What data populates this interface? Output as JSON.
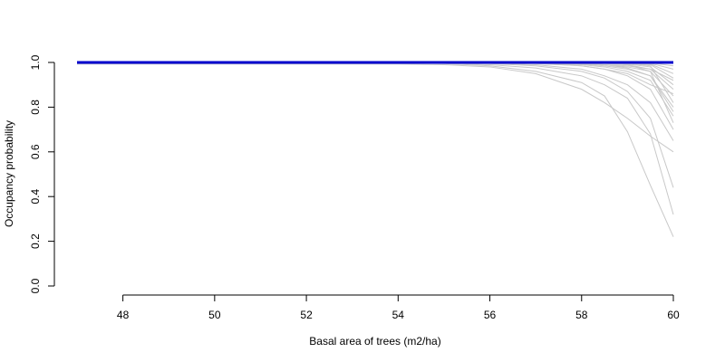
{
  "chart_data": {
    "type": "line",
    "title": "",
    "xlabel": "Basal area of trees (m2/ha)",
    "ylabel": "Occupancy probability",
    "xlim": [
      47,
      60
    ],
    "ylim": [
      0,
      1
    ],
    "x_ticks": [
      48,
      50,
      52,
      54,
      56,
      58,
      60
    ],
    "y_ticks": [
      0.0,
      0.2,
      0.4,
      0.6,
      0.8,
      1.0
    ],
    "x_tick_labels": [
      "48",
      "50",
      "52",
      "54",
      "56",
      "58",
      "60"
    ],
    "y_tick_labels": [
      "0.0",
      "0.2",
      "0.4",
      "0.6",
      "0.8",
      "1.0"
    ],
    "grid": false,
    "legend": "none",
    "x": [
      47,
      48,
      49,
      50,
      51,
      52,
      53,
      54,
      55,
      56,
      57,
      58,
      58.5,
      59,
      59.5,
      60
    ],
    "mean_series": {
      "color": "#0000cd",
      "values": [
        1.0,
        1.0,
        1.0,
        1.0,
        1.0,
        1.0,
        1.0,
        1.0,
        1.0,
        1.0,
        1.0,
        1.0,
        1.0,
        1.0,
        1.0,
        1.0
      ]
    },
    "sample_color": "#c8c8c8",
    "series": [
      {
        "values": [
          1.0,
          1.0,
          1.0,
          1.0,
          1.0,
          1.0,
          1.0,
          0.999,
          0.995,
          0.985,
          0.96,
          0.91,
          0.85,
          0.69,
          0.45,
          0.22
        ]
      },
      {
        "values": [
          1.0,
          1.0,
          1.0,
          1.0,
          1.0,
          1.0,
          1.0,
          1.0,
          0.998,
          0.99,
          0.975,
          0.94,
          0.9,
          0.84,
          0.68,
          0.32
        ]
      },
      {
        "values": [
          1.0,
          1.0,
          1.0,
          1.0,
          1.0,
          1.0,
          1.0,
          1.0,
          0.999,
          0.995,
          0.985,
          0.96,
          0.93,
          0.87,
          0.75,
          0.44
        ]
      },
      {
        "values": [
          0.993,
          0.993,
          0.993,
          0.993,
          0.993,
          0.993,
          0.993,
          0.993,
          0.99,
          0.98,
          0.95,
          0.88,
          0.82,
          0.75,
          0.67,
          0.6
        ]
      },
      {
        "values": [
          1.0,
          1.0,
          1.0,
          1.0,
          1.0,
          1.0,
          1.0,
          1.0,
          1.0,
          0.998,
          0.99,
          0.97,
          0.94,
          0.9,
          0.82,
          0.65
        ]
      },
      {
        "values": [
          1.0,
          1.0,
          1.0,
          1.0,
          1.0,
          1.0,
          1.0,
          1.0,
          1.0,
          0.999,
          0.995,
          0.985,
          0.97,
          0.94,
          0.88,
          0.7
        ]
      },
      {
        "values": [
          1.0,
          1.0,
          1.0,
          1.0,
          1.0,
          1.0,
          1.0,
          1.0,
          1.0,
          1.0,
          0.997,
          0.99,
          0.98,
          0.96,
          0.92,
          0.76
        ]
      },
      {
        "values": [
          1.0,
          1.0,
          1.0,
          1.0,
          1.0,
          1.0,
          1.0,
          1.0,
          1.0,
          1.0,
          0.998,
          0.993,
          0.985,
          0.97,
          0.94,
          0.8
        ]
      },
      {
        "values": [
          1.0,
          1.0,
          1.0,
          1.0,
          1.0,
          1.0,
          1.0,
          1.0,
          1.0,
          1.0,
          0.999,
          0.995,
          0.99,
          0.98,
          0.96,
          0.85
        ]
      },
      {
        "values": [
          1.0,
          1.0,
          1.0,
          1.0,
          1.0,
          1.0,
          1.0,
          1.0,
          1.0,
          1.0,
          1.0,
          0.998,
          0.995,
          0.99,
          0.97,
          0.88
        ]
      },
      {
        "values": [
          1.0,
          1.0,
          1.0,
          1.0,
          1.0,
          1.0,
          1.0,
          1.0,
          1.0,
          1.0,
          1.0,
          0.999,
          0.997,
          0.993,
          0.98,
          0.9
        ]
      },
      {
        "values": [
          1.0,
          1.0,
          1.0,
          1.0,
          1.0,
          1.0,
          1.0,
          1.0,
          1.0,
          1.0,
          1.0,
          1.0,
          0.999,
          0.996,
          0.99,
          0.93
        ]
      },
      {
        "values": [
          1.0,
          1.0,
          1.0,
          1.0,
          1.0,
          1.0,
          1.0,
          1.0,
          1.0,
          1.0,
          1.0,
          1.0,
          1.0,
          0.998,
          0.993,
          0.95
        ]
      },
      {
        "values": [
          1.0,
          1.0,
          1.0,
          1.0,
          1.0,
          1.0,
          1.0,
          1.0,
          1.0,
          1.0,
          1.0,
          1.0,
          1.0,
          0.999,
          0.996,
          0.97
        ]
      },
      {
        "values": [
          1.0,
          1.0,
          1.0,
          1.0,
          1.0,
          1.0,
          1.0,
          1.0,
          1.0,
          1.0,
          0.996,
          0.985,
          0.97,
          0.95,
          0.9,
          0.86
        ]
      },
      {
        "values": [
          1.0,
          1.0,
          1.0,
          1.0,
          1.0,
          1.0,
          1.0,
          1.0,
          1.0,
          1.0,
          1.0,
          0.997,
          0.99,
          0.975,
          0.94,
          0.78
        ]
      },
      {
        "values": [
          1.0,
          1.0,
          1.0,
          1.0,
          1.0,
          1.0,
          1.0,
          1.0,
          1.0,
          1.0,
          1.0,
          1.0,
          0.998,
          0.99,
          0.96,
          0.73
        ]
      },
      {
        "values": [
          1.0,
          1.0,
          1.0,
          1.0,
          1.0,
          1.0,
          1.0,
          1.0,
          1.0,
          1.0,
          0.999,
          0.996,
          0.99,
          0.985,
          0.97,
          0.92
        ]
      },
      {
        "values": [
          1.0,
          1.0,
          1.0,
          1.0,
          1.0,
          1.0,
          1.0,
          1.0,
          1.0,
          1.0,
          1.0,
          1.0,
          1.0,
          1.0,
          0.998,
          0.985
        ]
      },
      {
        "values": [
          1.0,
          1.0,
          1.0,
          1.0,
          1.0,
          1.0,
          1.0,
          1.0,
          1.0,
          1.0,
          1.0,
          1.0,
          1.0,
          0.997,
          0.985,
          0.82
        ]
      }
    ]
  }
}
